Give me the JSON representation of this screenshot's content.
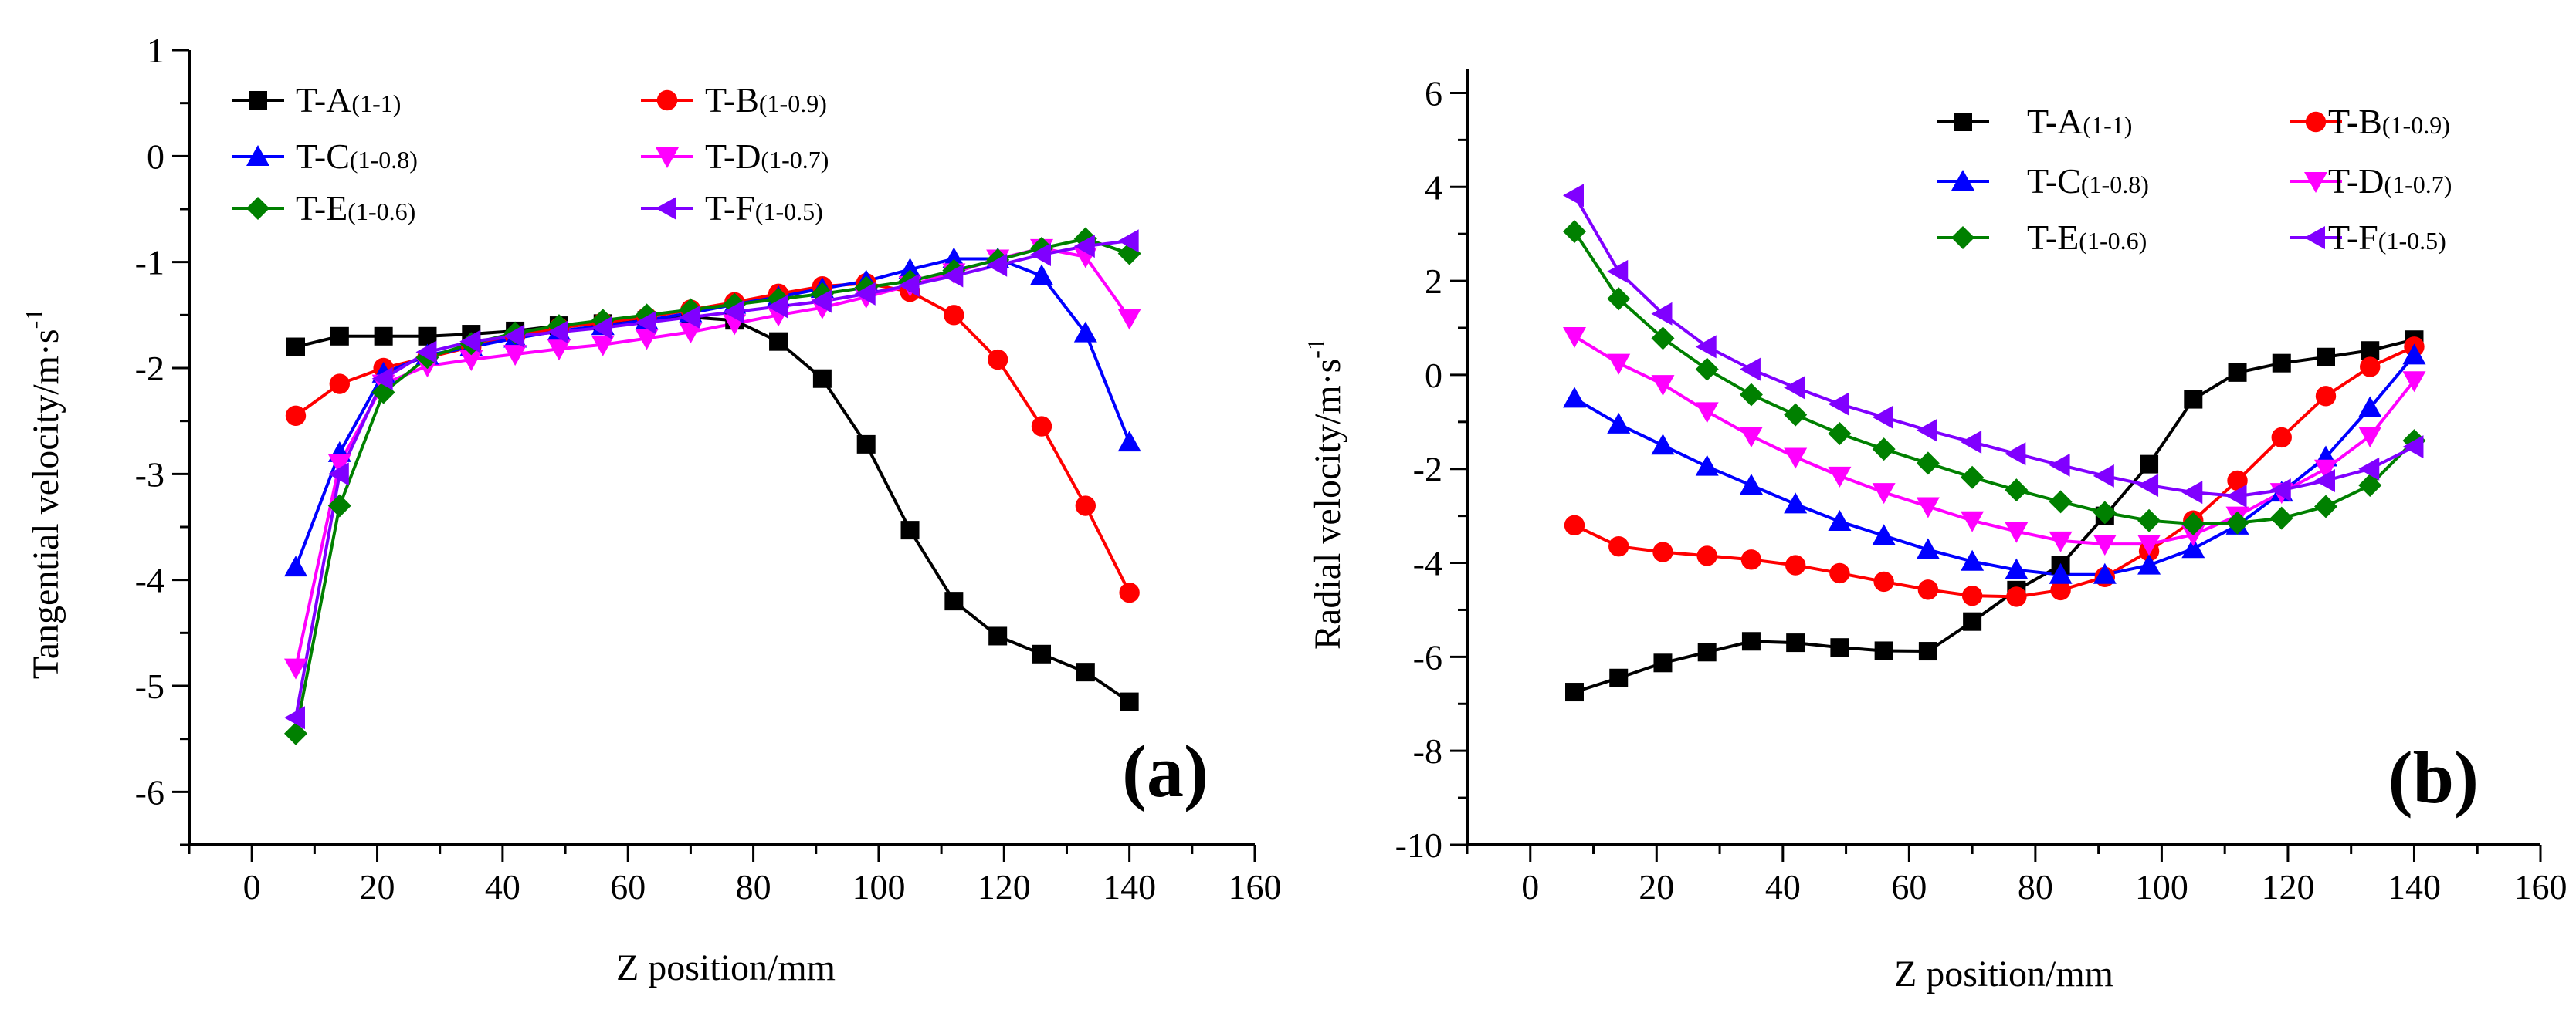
{
  "colors": {
    "T-A": "#000000",
    "T-B": "#ff0000",
    "T-C": "#0000ff",
    "T-D": "#ff00ff",
    "T-E": "#008000",
    "T-F": "#8000ff"
  },
  "chart_data": [
    {
      "type": "line",
      "panel_label": "(a)",
      "xlabel": "Z position/mm",
      "ylabel": "Tangential velocity/m·s",
      "ylabel_sup": "-1",
      "xlim": [
        -10,
        160
      ],
      "ylim": [
        -6.5,
        1
      ],
      "xticks": [
        0,
        20,
        40,
        60,
        80,
        100,
        120,
        140,
        160
      ],
      "yticks": [
        1,
        0,
        -1,
        -2,
        -3,
        -4,
        -5,
        -6
      ],
      "legend_position": "top-left",
      "x": [
        7,
        14,
        21,
        28,
        35,
        42,
        49,
        56,
        63,
        70,
        77,
        84,
        91,
        98,
        105,
        112,
        119,
        126,
        133,
        140
      ],
      "series": [
        {
          "name": "T-A",
          "sub": "(1-1)",
          "marker": "square",
          "color": "#000000",
          "values": [
            -1.8,
            -1.7,
            -1.7,
            -1.7,
            -1.68,
            -1.65,
            -1.6,
            -1.58,
            -1.55,
            -1.52,
            -1.55,
            -1.75,
            -2.1,
            -2.72,
            -3.53,
            -4.2,
            -4.53,
            -4.7,
            -4.87,
            -5.15
          ]
        },
        {
          "name": "T-B",
          "sub": "(1-0.9)",
          "marker": "circle",
          "color": "#ff0000",
          "values": [
            -2.45,
            -2.15,
            -2.0,
            -1.9,
            -1.8,
            -1.7,
            -1.62,
            -1.57,
            -1.52,
            -1.45,
            -1.38,
            -1.3,
            -1.23,
            -1.2,
            -1.28,
            -1.5,
            -1.92,
            -2.55,
            -3.3,
            -4.12
          ]
        },
        {
          "name": "T-C",
          "sub": "(1-0.8)",
          "marker": "triangle-up",
          "color": "#0000ff",
          "values": [
            -3.88,
            -2.8,
            -2.05,
            -1.88,
            -1.8,
            -1.72,
            -1.65,
            -1.6,
            -1.55,
            -1.48,
            -1.4,
            -1.33,
            -1.25,
            -1.18,
            -1.07,
            -0.97,
            -0.97,
            -1.13,
            -1.67,
            -2.7
          ]
        },
        {
          "name": "T-D",
          "sub": "(1-0.7)",
          "marker": "triangle-down",
          "color": "#ff00ff",
          "values": [
            -4.83,
            -2.9,
            -2.15,
            -1.98,
            -1.92,
            -1.87,
            -1.82,
            -1.78,
            -1.72,
            -1.66,
            -1.58,
            -1.5,
            -1.43,
            -1.33,
            -1.22,
            -1.1,
            -0.97,
            -0.87,
            -0.95,
            -1.53
          ]
        },
        {
          "name": "T-E",
          "sub": "(1-0.6)",
          "marker": "diamond",
          "color": "#008000",
          "values": [
            -5.45,
            -3.3,
            -2.23,
            -1.9,
            -1.77,
            -1.67,
            -1.6,
            -1.55,
            -1.5,
            -1.45,
            -1.4,
            -1.35,
            -1.3,
            -1.24,
            -1.18,
            -1.08,
            -0.98,
            -0.87,
            -0.78,
            -0.92
          ]
        },
        {
          "name": "T-F",
          "sub": "(1-0.5)",
          "marker": "triangle-left",
          "color": "#8000ff",
          "values": [
            -5.3,
            -3.0,
            -2.1,
            -1.85,
            -1.75,
            -1.7,
            -1.66,
            -1.62,
            -1.57,
            -1.52,
            -1.47,
            -1.42,
            -1.37,
            -1.3,
            -1.22,
            -1.13,
            -1.03,
            -0.93,
            -0.85,
            -0.8
          ]
        }
      ]
    },
    {
      "type": "line",
      "panel_label": "(b)",
      "xlabel": "Z position/mm",
      "ylabel": "Radial velocity/m·s",
      "ylabel_sup": "-1",
      "xlim": [
        -10,
        160
      ],
      "ylim": [
        -10,
        6.5
      ],
      "xticks": [
        0,
        20,
        40,
        60,
        80,
        100,
        120,
        140,
        160
      ],
      "yticks": [
        6,
        4,
        2,
        0,
        -2,
        -4,
        -6,
        -8,
        -10
      ],
      "legend_position": "top-right",
      "x": [
        7,
        14,
        21,
        28,
        35,
        42,
        49,
        56,
        63,
        70,
        77,
        84,
        91,
        98,
        105,
        112,
        119,
        126,
        133,
        140
      ],
      "series": [
        {
          "name": "T-A",
          "sub": "(1-1)",
          "marker": "square",
          "color": "#000000",
          "values": [
            -6.75,
            -6.45,
            -6.13,
            -5.9,
            -5.67,
            -5.7,
            -5.8,
            -5.87,
            -5.88,
            -5.25,
            -4.58,
            -4.05,
            -3.0,
            -1.9,
            -0.52,
            0.05,
            0.25,
            0.38,
            0.52,
            0.75
          ]
        },
        {
          "name": "T-B",
          "sub": "(1-0.9)",
          "marker": "circle",
          "color": "#ff0000",
          "values": [
            -3.2,
            -3.65,
            -3.77,
            -3.85,
            -3.93,
            -4.05,
            -4.22,
            -4.4,
            -4.57,
            -4.7,
            -4.72,
            -4.58,
            -4.3,
            -3.75,
            -3.1,
            -2.25,
            -1.33,
            -0.45,
            0.17,
            0.6
          ]
        },
        {
          "name": "T-C",
          "sub": "(1-0.8)",
          "marker": "triangle-up",
          "color": "#0000ff",
          "values": [
            -0.5,
            -1.05,
            -1.5,
            -1.95,
            -2.35,
            -2.75,
            -3.12,
            -3.42,
            -3.72,
            -3.97,
            -4.15,
            -4.25,
            -4.25,
            -4.05,
            -3.7,
            -3.2,
            -2.5,
            -1.75,
            -0.7,
            0.42
          ]
        },
        {
          "name": "T-D",
          "sub": "(1-0.7)",
          "marker": "triangle-down",
          "color": "#ff00ff",
          "values": [
            0.82,
            0.25,
            -0.2,
            -0.78,
            -1.3,
            -1.75,
            -2.15,
            -2.5,
            -2.8,
            -3.1,
            -3.33,
            -3.53,
            -3.6,
            -3.6,
            -3.4,
            -3.0,
            -2.5,
            -2.0,
            -1.3,
            -0.12
          ]
        },
        {
          "name": "T-E",
          "sub": "(1-0.6)",
          "marker": "diamond",
          "color": "#008000",
          "values": [
            3.05,
            1.62,
            0.78,
            0.12,
            -0.42,
            -0.85,
            -1.25,
            -1.58,
            -1.88,
            -2.18,
            -2.45,
            -2.7,
            -2.93,
            -3.1,
            -3.17,
            -3.15,
            -3.05,
            -2.8,
            -2.35,
            -1.4
          ]
        },
        {
          "name": "T-F",
          "sub": "(1-0.5)",
          "marker": "triangle-left",
          "color": "#8000ff",
          "values": [
            3.82,
            2.2,
            1.3,
            0.6,
            0.12,
            -0.27,
            -0.62,
            -0.9,
            -1.18,
            -1.43,
            -1.68,
            -1.92,
            -2.15,
            -2.35,
            -2.5,
            -2.58,
            -2.45,
            -2.25,
            -2.0,
            -1.53
          ]
        }
      ]
    }
  ]
}
